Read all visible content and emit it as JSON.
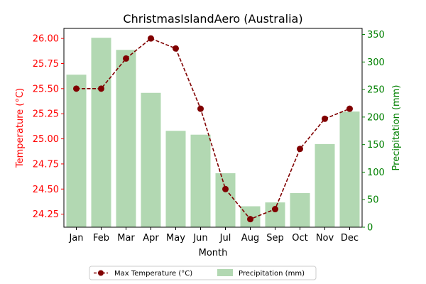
{
  "chart_data": {
    "type": "bar+line",
    "title": "ChristmasIslandAero (Australia)",
    "xlabel": "Month",
    "ylabel_left": "Temperature (°C)",
    "ylabel_right": "Precipitation (mm)",
    "categories": [
      "Jan",
      "Feb",
      "Mar",
      "Apr",
      "May",
      "Jun",
      "Jul",
      "Aug",
      "Sep",
      "Oct",
      "Nov",
      "Dec"
    ],
    "series": [
      {
        "name": "Max Temperature (°C)",
        "type": "line",
        "axis": "left",
        "values": [
          25.5,
          25.5,
          25.8,
          26.0,
          25.9,
          25.3,
          24.5,
          24.2,
          24.3,
          24.9,
          25.2,
          25.3
        ]
      },
      {
        "name": "Precipitation (mm)",
        "type": "bar",
        "axis": "right",
        "values": [
          277,
          344,
          322,
          244,
          175,
          168,
          98,
          38,
          45,
          62,
          151,
          210
        ]
      }
    ],
    "ylim_left": [
      24.12,
      26.1
    ],
    "ylim_right": [
      0,
      361
    ],
    "yticks_left": [
      "24.25",
      "24.50",
      "24.75",
      "25.00",
      "25.25",
      "25.50",
      "25.75",
      "26.00"
    ],
    "yticks_right": [
      "0",
      "50",
      "100",
      "150",
      "200",
      "250",
      "300",
      "350"
    ],
    "legend_position": "bottom-center",
    "grid": false,
    "colors": {
      "line": "#800000",
      "bar": "#b2d8b2",
      "left_axis": "#ff0000",
      "right_axis": "#008000"
    }
  }
}
